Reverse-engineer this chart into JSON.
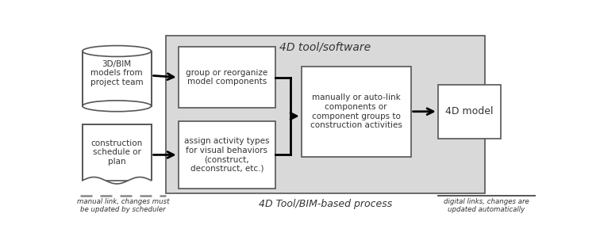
{
  "bg_color": "#ffffff",
  "gray_box_color": "#d9d9d9",
  "white_box_color": "#ffffff",
  "box_edge_color": "#555555",
  "arrow_color": "#000000",
  "text_color": "#333333",
  "title_4d_tool": "4D tool/software",
  "title_4d_process": "4D Tool/BIM-based process",
  "label_3dbim": "3D/BIM\nmodels from\nproject team",
  "label_construction": "construction\nschedule or\nplan",
  "label_group": "group or reorganize\nmodel components",
  "label_assign": "assign activity types\nfor visual behaviors\n(construct,\ndeconstruct, etc.)",
  "label_link": "manually or auto-link\ncomponents or\ncomponent groups to\nconstruction activities",
  "label_4dmodel": "4D model",
  "label_manual": "manual link, changes must\nbe updated by scheduler",
  "label_digital": "digital links, changes are\nupdated automatically",
  "dashed_line_color": "#888888",
  "solid_line_color": "#555555"
}
